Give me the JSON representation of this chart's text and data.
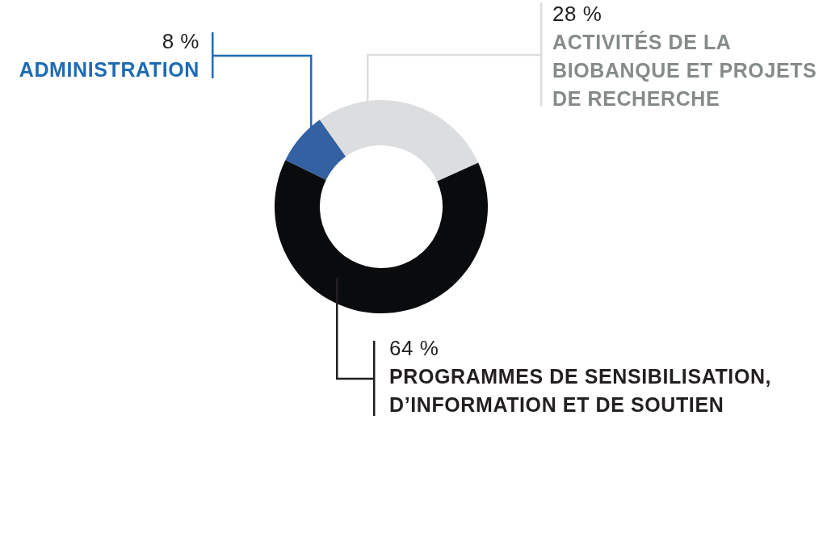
{
  "chart_data": {
    "type": "donut",
    "categories": [
      "ADMINISTRATION",
      "ACTIVITÉS DE LA BIOBANQUE ET PROJETS DE RECHERCHE",
      "PROGRAMMES DE SENSIBILISATION, D’INFORMATION ET DE SOUTIEN"
    ],
    "values": [
      8,
      28,
      64
    ],
    "colors": [
      "#3461a2",
      "#dcdddf",
      "#0a0b0d"
    ],
    "value_labels": [
      "8 %",
      "28 %",
      "64 %"
    ]
  }
}
